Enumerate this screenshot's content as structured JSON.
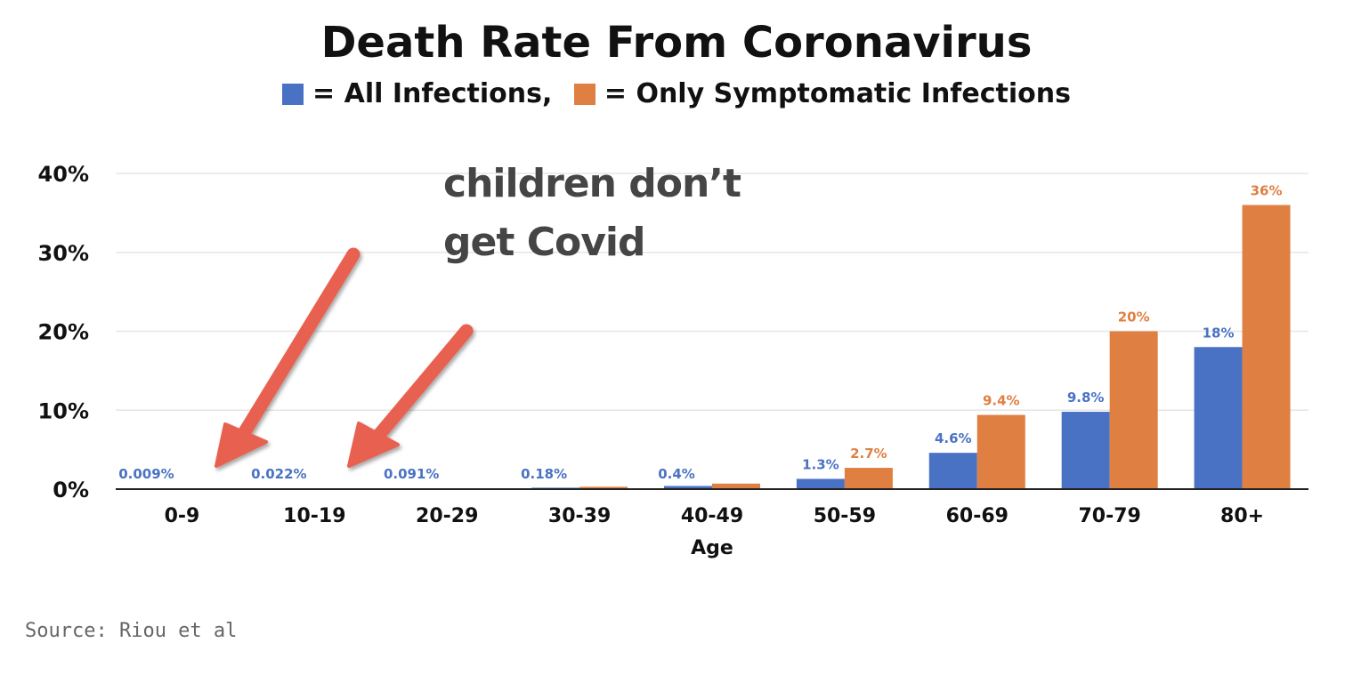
{
  "header": {
    "title": "Death Rate From Coronavirus",
    "legend_all": "= All Infections,",
    "legend_symptomatic": "= Only Symptomatic Infections"
  },
  "annotation": {
    "line1": "children don’t",
    "line2": "get Covid"
  },
  "source": "Source: Riou et al",
  "colors": {
    "all_infections": "#4a72c4",
    "symptomatic": "#e07f42",
    "arrow": "#e8604f",
    "grid": "#e6e6e6",
    "axis": "#222222"
  },
  "chart_data": {
    "type": "bar",
    "title": "Death Rate From Coronavirus",
    "xlabel": "Age",
    "ylabel": "",
    "ylim": [
      0,
      40
    ],
    "yticks": [
      "0%",
      "10%",
      "20%",
      "30%",
      "40%"
    ],
    "ytick_values": [
      0,
      10,
      20,
      30,
      40
    ],
    "grid": true,
    "legend": "top-center",
    "categories": [
      "0-9",
      "10-19",
      "20-29",
      "30-39",
      "40-49",
      "50-59",
      "60-69",
      "70-79",
      "80+"
    ],
    "series": [
      {
        "name": "All Infections",
        "values": [
          0.009,
          0.022,
          0.091,
          0.18,
          0.4,
          1.3,
          4.6,
          9.8,
          18
        ],
        "labels": [
          "0.009%",
          "0.022%",
          "0.091%",
          "0.18%",
          "0.4%",
          "1.3%",
          "4.6%",
          "9.8%",
          "18%"
        ]
      },
      {
        "name": "Only Symptomatic Infections",
        "values": [
          0.0,
          0.0,
          0.0,
          0.3,
          0.7,
          2.7,
          9.4,
          20,
          36
        ],
        "labels": [
          "",
          "",
          "",
          "",
          "",
          "2.7%",
          "9.4%",
          "20%",
          "36%"
        ]
      }
    ]
  }
}
